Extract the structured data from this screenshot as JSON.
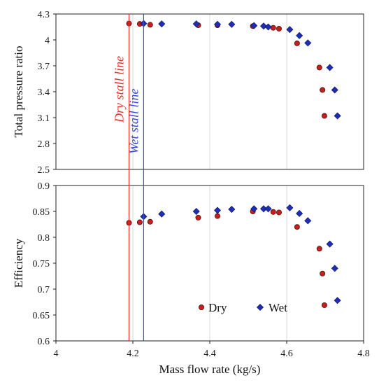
{
  "chart_data": {
    "type": "scatter",
    "xlabel": "Mass flow rate (kg/s)",
    "xlim": [
      4,
      4.8
    ],
    "xticks": [
      "4",
      "4.2",
      "4.4",
      "4.6",
      "4.8"
    ],
    "grid": "vertical",
    "colors": {
      "dry": "#c0211e",
      "wet": "#1f2db0"
    },
    "stall_lines": [
      {
        "label": "Dry stall line",
        "x": 4.19,
        "color": "#e8302a"
      },
      {
        "label": "Wet stall line",
        "x": 4.228,
        "color": "#3848d8"
      }
    ],
    "legend": {
      "placement": "bottom-right",
      "dry_label": "Dry",
      "wet_label": "Wet"
    },
    "panels": [
      {
        "ylabel": "Total pressure ratio",
        "ylim": [
          2.5,
          4.3
        ],
        "yticks": [
          "2.5",
          "2.8",
          "3.1",
          "3.4",
          "3.7",
          "4",
          "4.3"
        ],
        "series": [
          {
            "name": "Dry",
            "points": [
              [
                4.19,
                4.19
              ],
              [
                4.218,
                4.185
              ],
              [
                4.245,
                4.175
              ],
              [
                4.37,
                4.17
              ],
              [
                4.42,
                4.17
              ],
              [
                4.512,
                4.16
              ],
              [
                4.565,
                4.14
              ],
              [
                4.58,
                4.13
              ],
              [
                4.627,
                3.96
              ],
              [
                4.685,
                3.68
              ],
              [
                4.693,
                3.42
              ],
              [
                4.698,
                3.12
              ]
            ]
          },
          {
            "name": "Wet",
            "points": [
              [
                4.228,
                4.19
              ],
              [
                4.275,
                4.185
              ],
              [
                4.365,
                4.185
              ],
              [
                4.42,
                4.18
              ],
              [
                4.457,
                4.18
              ],
              [
                4.515,
                4.165
              ],
              [
                4.54,
                4.16
              ],
              [
                4.552,
                4.15
              ],
              [
                4.608,
                4.12
              ],
              [
                4.633,
                4.05
              ],
              [
                4.655,
                3.965
              ],
              [
                4.712,
                3.68
              ],
              [
                4.725,
                3.42
              ],
              [
                4.732,
                3.12
              ]
            ]
          }
        ]
      },
      {
        "ylabel": "Efficiency",
        "ylim": [
          0.6,
          0.9
        ],
        "yticks": [
          "0.6",
          "0.65",
          "0.7",
          "0.75",
          "0.8",
          "0.85",
          "0.9"
        ],
        "series": [
          {
            "name": "Dry",
            "points": [
              [
                4.19,
                0.828
              ],
              [
                4.218,
                0.829
              ],
              [
                4.245,
                0.83
              ],
              [
                4.37,
                0.838
              ],
              [
                4.42,
                0.841
              ],
              [
                4.512,
                0.85
              ],
              [
                4.565,
                0.849
              ],
              [
                4.58,
                0.848
              ],
              [
                4.627,
                0.82
              ],
              [
                4.685,
                0.778
              ],
              [
                4.693,
                0.73
              ],
              [
                4.698,
                0.669
              ]
            ]
          },
          {
            "name": "Wet",
            "points": [
              [
                4.228,
                0.84
              ],
              [
                4.275,
                0.845
              ],
              [
                4.365,
                0.85
              ],
              [
                4.42,
                0.852
              ],
              [
                4.457,
                0.854
              ],
              [
                4.515,
                0.855
              ],
              [
                4.54,
                0.855
              ],
              [
                4.552,
                0.855
              ],
              [
                4.608,
                0.857
              ],
              [
                4.633,
                0.846
              ],
              [
                4.655,
                0.832
              ],
              [
                4.712,
                0.787
              ],
              [
                4.725,
                0.74
              ],
              [
                4.732,
                0.678
              ]
            ]
          }
        ]
      }
    ]
  }
}
